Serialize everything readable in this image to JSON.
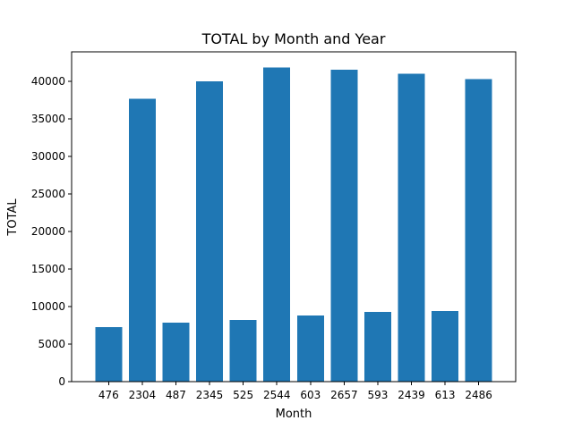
{
  "chart_data": {
    "type": "bar",
    "title": "TOTAL by Month and Year",
    "xlabel": "Month",
    "ylabel": "TOTAL",
    "categories": [
      "476",
      "2304",
      "487",
      "2345",
      "525",
      "2544",
      "603",
      "2657",
      "593",
      "2439",
      "613",
      "2486"
    ],
    "values": [
      7250,
      37650,
      7850,
      40000,
      8200,
      41800,
      8800,
      41500,
      9250,
      41000,
      9400,
      40250
    ],
    "ylim": [
      0,
      43900
    ],
    "yticks": [
      0,
      5000,
      10000,
      15000,
      20000,
      25000,
      30000,
      35000,
      40000
    ],
    "grid": false,
    "bar_color": "#1f77b4"
  }
}
